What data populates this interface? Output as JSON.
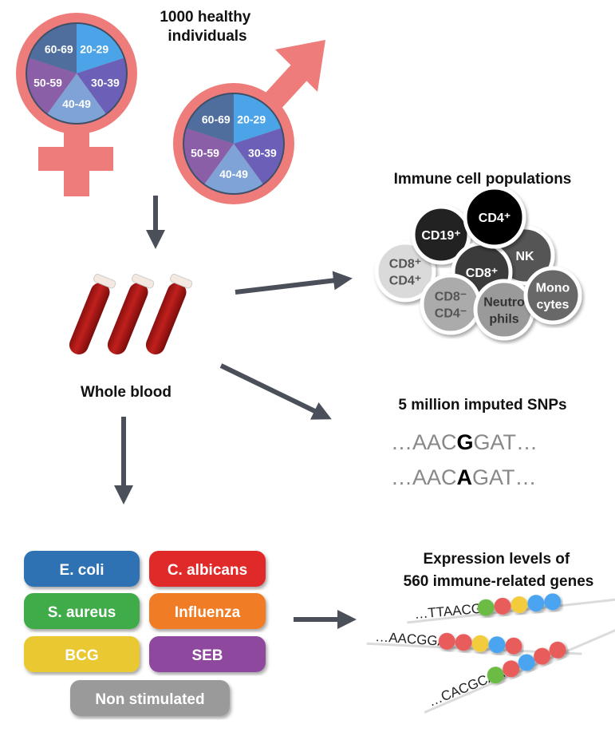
{
  "title": "1000 healthy individuals",
  "title_lines": [
    "1000 healthy",
    "individuals"
  ],
  "age_groups": [
    "20-29",
    "30-39",
    "40-49",
    "50-59",
    "60-69"
  ],
  "age_colors": [
    "#4ba4e8",
    "#6b5fb8",
    "#7fa3d6",
    "#8b5ea8",
    "#4f6e9e"
  ],
  "symbol_color": "#ee7c7a",
  "arrow_color": "#4a4f59",
  "blood_label": "Whole blood",
  "immune": {
    "title": "Immune cell populations",
    "cells": [
      {
        "name": "CD8+ CD4+",
        "lines": [
          "CD8⁺",
          "CD4⁺"
        ],
        "color": "#dadada",
        "text": "#555"
      },
      {
        "name": "CD19+",
        "lines": [
          "CD19⁺"
        ],
        "color": "#222222",
        "text": "#fff"
      },
      {
        "name": "NK",
        "lines": [
          "NK"
        ],
        "color": "#555555",
        "text": "#fff"
      },
      {
        "name": "CD8+",
        "lines": [
          "CD8⁺"
        ],
        "color": "#3a3a3a",
        "text": "#fff"
      },
      {
        "name": "CD4+",
        "lines": [
          "CD4⁺"
        ],
        "color": "#000000",
        "text": "#fff"
      },
      {
        "name": "CD8- CD4-",
        "lines": [
          "CD8⁻",
          "CD4⁻"
        ],
        "color": "#ababab",
        "text": "#555"
      },
      {
        "name": "Neutrophils",
        "lines": [
          "Neutro",
          "phils"
        ],
        "color": "#9a9a9a",
        "text": "#333"
      },
      {
        "name": "Monocytes",
        "lines": [
          "Mono",
          "cytes"
        ],
        "color": "#686868",
        "text": "#fff"
      }
    ]
  },
  "snps": {
    "title": "5 million imputed SNPs",
    "rows": [
      {
        "pre": "…AAC",
        "allele": "G",
        "post": "GAT…"
      },
      {
        "pre": "…AAC",
        "allele": "A",
        "post": "GAT…"
      }
    ]
  },
  "stimuli": [
    {
      "label": "E. coli",
      "color": "#2f72b4"
    },
    {
      "label": "C. albicans",
      "color": "#e02a2c"
    },
    {
      "label": "S. aureus",
      "color": "#3fab4a"
    },
    {
      "label": "Influenza",
      "color": "#f07b28"
    },
    {
      "label": "BCG",
      "color": "#e9c832"
    },
    {
      "label": "SEB",
      "color": "#8e4a9f"
    },
    {
      "label": "Non stimulated",
      "color": "#9a9a9a"
    }
  ],
  "expression": {
    "title_lines": [
      "Expression levels of",
      "560 immune-related genes"
    ],
    "rows": [
      {
        "seq": "…TTAACGG",
        "beads": [
          "#6cbb45",
          "#e85c5c",
          "#f2cc3c",
          "#4ba4f0",
          "#4ba4f0"
        ]
      },
      {
        "seq": "…AACGGAT",
        "beads": [
          "#e85c5c",
          "#e85c5c",
          "#f2cc3c",
          "#4ba4f0",
          "#e85c5c"
        ]
      },
      {
        "seq": "…CACGCAA",
        "beads": [
          "#6cbb45",
          "#e85c5c",
          "#4ba4f0",
          "#e85c5c",
          "#e85c5c"
        ]
      }
    ]
  }
}
